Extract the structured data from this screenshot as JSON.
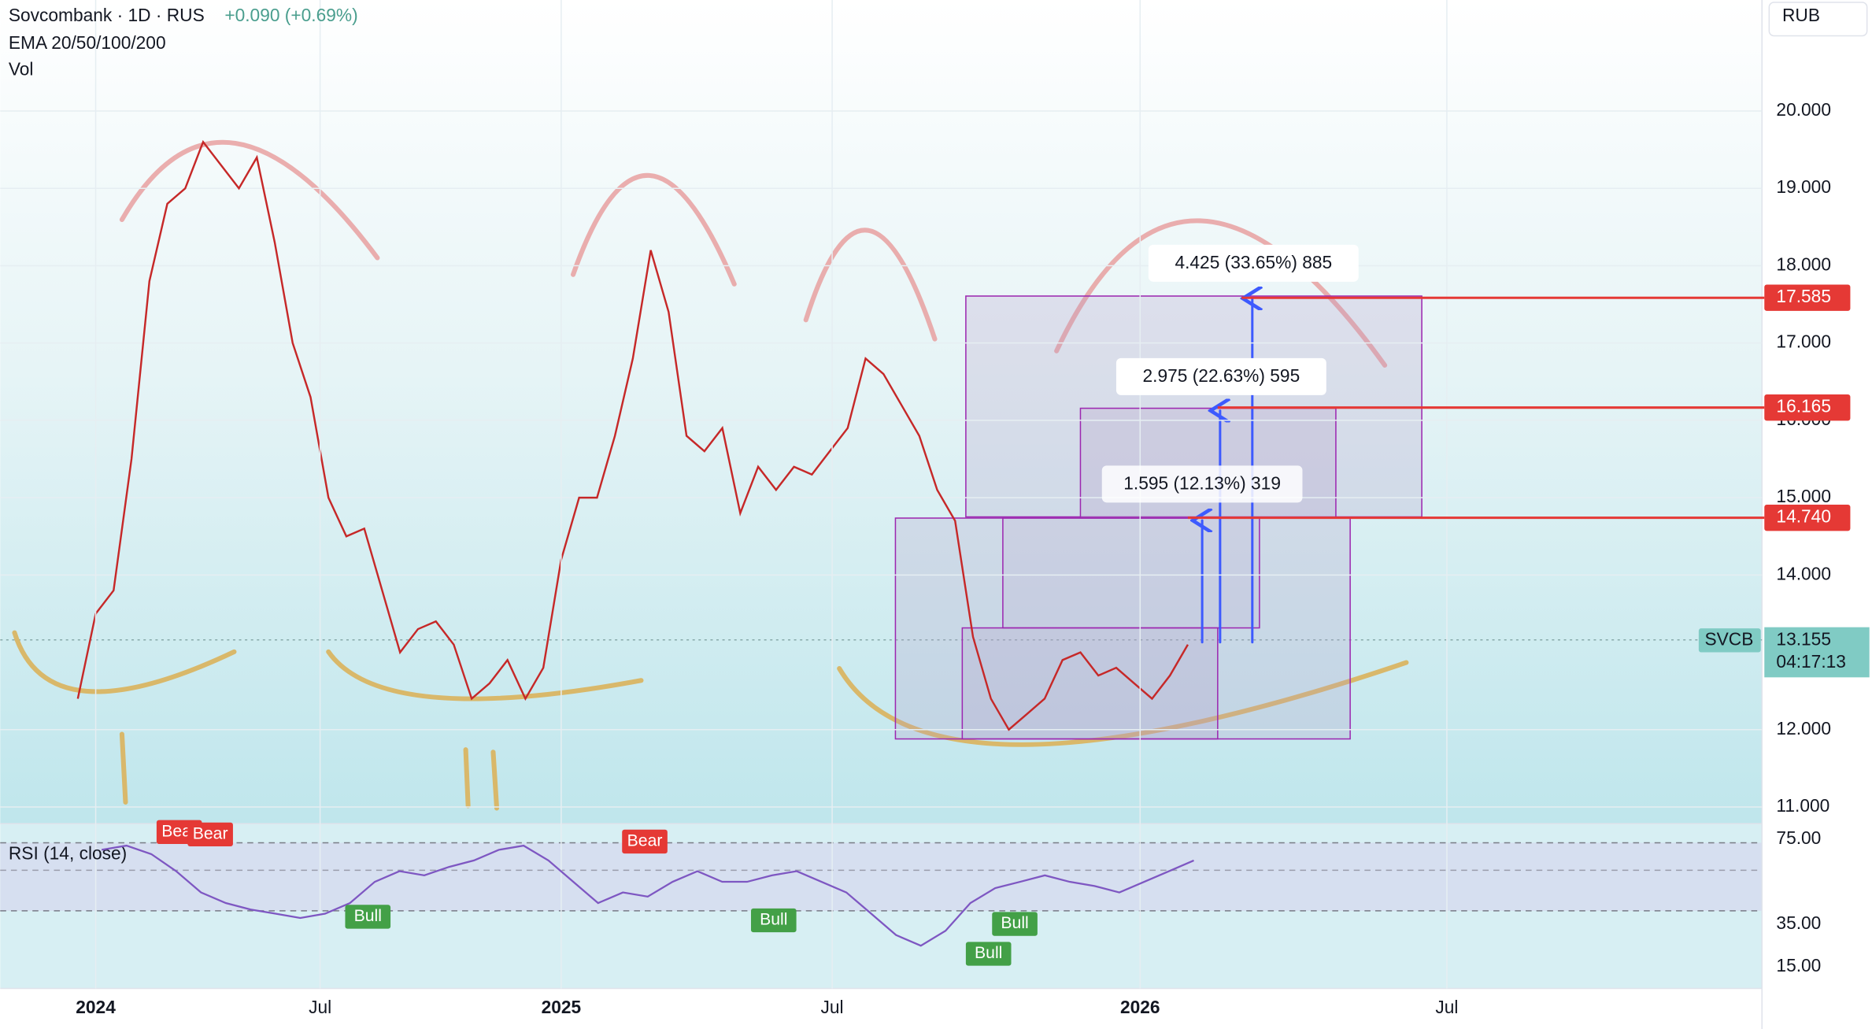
{
  "header": {
    "symbol": "Sovcombank · 1D · RUS",
    "change": "+0.090 (+0.69%)",
    "indicators": [
      "EMA 20/50/100/200",
      "Vol"
    ],
    "currency": "RUB"
  },
  "price_axis": {
    "ticks": [
      {
        "value": 20,
        "label": "20.000"
      },
      {
        "value": 19,
        "label": "19.000"
      },
      {
        "value": 18,
        "label": "18.000"
      },
      {
        "value": 17,
        "label": "17.000"
      },
      {
        "value": 16,
        "label": "16.000"
      },
      {
        "value": 15,
        "label": "15.000"
      },
      {
        "value": 14,
        "label": "14.000"
      },
      {
        "value": 12,
        "label": "12.000"
      },
      {
        "value": 11,
        "label": "11.000"
      }
    ]
  },
  "price_lines": [
    {
      "value": 17.585,
      "label": "17.585"
    },
    {
      "value": 16.165,
      "label": "16.165"
    },
    {
      "value": 14.74,
      "label": "14.740"
    }
  ],
  "last_price": {
    "symbol": "SVCB",
    "value": 13.155,
    "label": "13.155",
    "countdown": "04:17:13"
  },
  "measurements": [
    "4.425 (33.65%) 885",
    "2.975 (22.63%) 595",
    "1.595 (12.13%) 319"
  ],
  "price_series": [
    12.4,
    13.5,
    13.8,
    15.5,
    17.8,
    18.8,
    19.0,
    19.6,
    19.3,
    19.0,
    19.4,
    18.3,
    17.0,
    16.3,
    15.0,
    14.5,
    14.6,
    13.8,
    13.0,
    13.3,
    13.4,
    13.1,
    12.4,
    12.6,
    12.9,
    12.4,
    12.8,
    14.2,
    15.0,
    15.0,
    15.8,
    16.8,
    18.2,
    17.4,
    15.8,
    15.6,
    15.9,
    14.8,
    15.4,
    15.1,
    15.4,
    15.3,
    15.6,
    15.9,
    16.8,
    16.6,
    16.2,
    15.8,
    15.1,
    14.7,
    13.2,
    12.4,
    12.0,
    12.2,
    12.4,
    12.9,
    13.0,
    12.7,
    12.8,
    12.6,
    12.4,
    12.7,
    13.1
  ],
  "rsi": {
    "title": "RSI (14, close)",
    "ticks": [
      {
        "value": 75,
        "label": "75.00"
      },
      {
        "value": 35,
        "label": "35.00"
      },
      {
        "value": 15,
        "label": "15.00"
      }
    ],
    "values": [
      70,
      72,
      68,
      60,
      50,
      45,
      42,
      40,
      38,
      40,
      45,
      55,
      60,
      58,
      62,
      65,
      70,
      72,
      65,
      55,
      45,
      50,
      48,
      55,
      60,
      55,
      55,
      58,
      60,
      55,
      50,
      40,
      30,
      25,
      32,
      45,
      52,
      55,
      58,
      55,
      53,
      50,
      55,
      60,
      65
    ]
  },
  "signals": [
    "Bear",
    "Bear",
    "Bear",
    "Bull",
    "Bull",
    "Bull",
    "Bull"
  ],
  "time_axis": [
    "2024",
    "Jul",
    "2025",
    "Jul",
    "2026",
    "Jul"
  ]
}
